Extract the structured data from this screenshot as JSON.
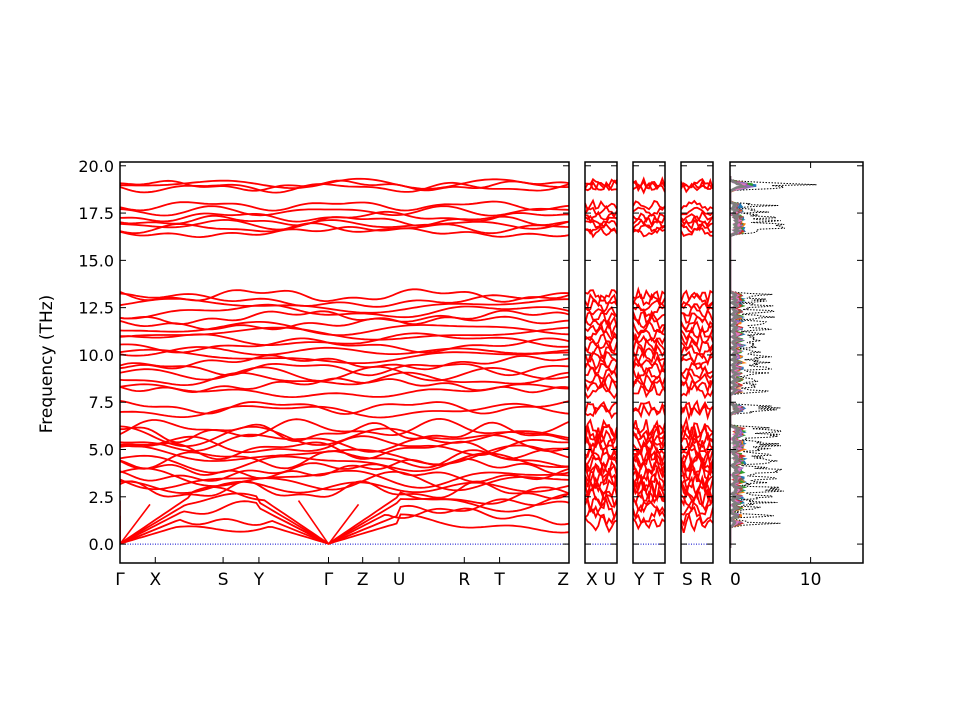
{
  "chart_data": {
    "type": "line",
    "ylabel": "Frequency (THz)",
    "ylim": [
      -1.0,
      20.2
    ],
    "yticks": [
      "0.0",
      "2.5",
      "5.0",
      "7.5",
      "10.0",
      "12.5",
      "15.0",
      "17.5",
      "20.0"
    ],
    "ytick_values": [
      0,
      2.5,
      5,
      7.5,
      10,
      12.5,
      15,
      17.5,
      20
    ],
    "zero_line": {
      "y": 0,
      "color": "#0000cc",
      "style": "dotted"
    },
    "band_color": "#ff0000",
    "band_panels": [
      {
        "labels": [
          {
            "text": "Γ",
            "x": 0.0
          },
          {
            "text": "X",
            "x": 0.0786
          },
          {
            "text": "S",
            "x": 0.2296
          },
          {
            "text": "Y",
            "x": 0.3094
          },
          {
            "text": "Γ",
            "x": 0.4644
          },
          {
            "text": "Z",
            "x": 0.5405
          },
          {
            "text": "U",
            "x": 0.6215
          },
          {
            "text": "R",
            "x": 0.7668
          },
          {
            "text": "T",
            "x": 0.8454
          },
          {
            "text": "Z",
            "x": 1.0
          }
        ]
      },
      {
        "labels": [
          {
            "text": "X",
            "x": 0.0
          },
          {
            "text": "U",
            "x": 1.0
          }
        ]
      },
      {
        "labels": [
          {
            "text": "Y",
            "x": 0.0
          },
          {
            "text": "T",
            "x": 1.0
          }
        ]
      },
      {
        "labels": [
          {
            "text": "S",
            "x": 0.0
          },
          {
            "text": "R",
            "x": 1.0
          }
        ]
      }
    ],
    "bands": {
      "high_group": [
        16.5,
        16.7,
        16.9,
        17.1,
        17.3,
        17.6,
        17.9
      ],
      "top_group": [
        18.85,
        18.95,
        19.05
      ],
      "mid_group": [
        7.05,
        7.25,
        8.1,
        8.4,
        8.7,
        9.0,
        9.3,
        9.6,
        9.9,
        10.2,
        10.5,
        10.8,
        11.1,
        11.4,
        11.7,
        12.0,
        12.3,
        12.6,
        12.9,
        13.15
      ],
      "low_group": [
        1.1,
        1.5,
        1.9,
        2.2,
        2.5,
        2.8,
        3.0,
        3.3,
        3.5,
        3.8,
        4.0,
        4.3,
        4.5,
        4.7,
        5.0,
        5.2,
        5.4,
        5.7,
        5.9,
        6.1
      ],
      "acoustic_gamma": [
        0.0,
        0.0,
        0.0
      ]
    },
    "dos": {
      "xlim": [
        0,
        16.5
      ],
      "xticks": [
        "0",
        "10"
      ],
      "xtick_values": [
        0,
        10
      ],
      "total_color": "#000000",
      "partial_colors": [
        "#1f77b4",
        "#ff7f0e",
        "#2ca02c",
        "#d62728",
        "#9467bd",
        "#8c564b",
        "#e377c2",
        "#7f7f7f"
      ]
    }
  }
}
